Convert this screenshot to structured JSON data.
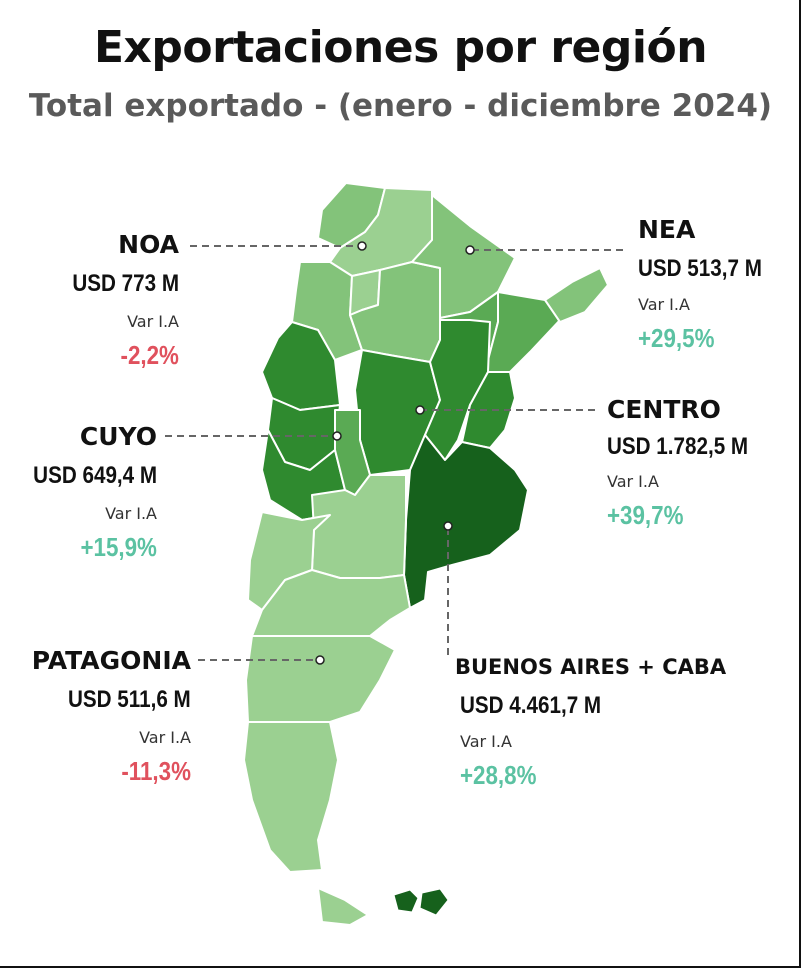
{
  "title": "Exportaciones por región",
  "subtitle": "Total exportado - (enero - diciembre 2024)",
  "colors": {
    "lightest": "#9bd091",
    "light": "#83c37a",
    "mid": "#5aaa54",
    "dark": "#2f8a2f",
    "darkest": "#16611c",
    "negative": "#e0515d",
    "positive": "#5bc2a2"
  },
  "regions": {
    "noa": {
      "name": "NOA",
      "value": "USD 773 M",
      "var_label": "Var I.A",
      "var": "-2,2%"
    },
    "nea": {
      "name": "NEA",
      "value": "USD 513,7 M",
      "var_label": "Var I.A",
      "var": "+29,5%"
    },
    "cuyo": {
      "name": "CUYO",
      "value": "USD 649,4 M",
      "var_label": "Var I.A",
      "var": "+15,9%"
    },
    "centro": {
      "name": "CENTRO",
      "value": "USD 1.782,5 M",
      "var_label": "Var I.A",
      "var": "+39,7%"
    },
    "patagonia": {
      "name": "PATAGONIA",
      "value": "USD 511,6 M",
      "var_label": "Var I.A",
      "var": "-11,3%"
    },
    "buenos_aires": {
      "name": "BUENOS AIRES + CABA",
      "value": "USD 4.461,7 M",
      "var_label": "Var I.A",
      "var": "+28,8%"
    }
  }
}
